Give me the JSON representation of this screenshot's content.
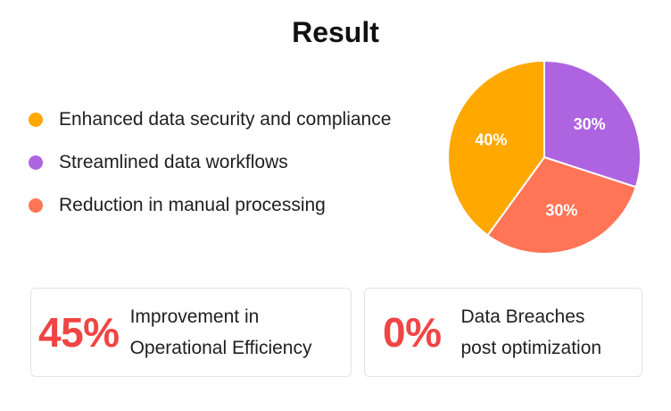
{
  "title": "Result",
  "chart_data": {
    "type": "pie",
    "slices": [
      {
        "label": "Enhanced data security and compliance",
        "value": 40,
        "display": "40%",
        "color": "#FFA800"
      },
      {
        "label": "Streamlined data workflows",
        "value": 30,
        "display": "30%",
        "color": "#AE64E1"
      },
      {
        "label": "Reduction in manual processing",
        "value": 30,
        "display": "30%",
        "color": "#FF7556"
      }
    ],
    "legend_position": "left"
  },
  "stats": [
    {
      "value": "45%",
      "label_lines": [
        "Improvement in",
        "Operational Efficiency"
      ]
    },
    {
      "value": "0%",
      "label_lines": [
        "Data Breaches",
        "post optimization"
      ]
    }
  ],
  "colors": {
    "accent": "#F04545",
    "card_border": "#E2E2E2"
  }
}
